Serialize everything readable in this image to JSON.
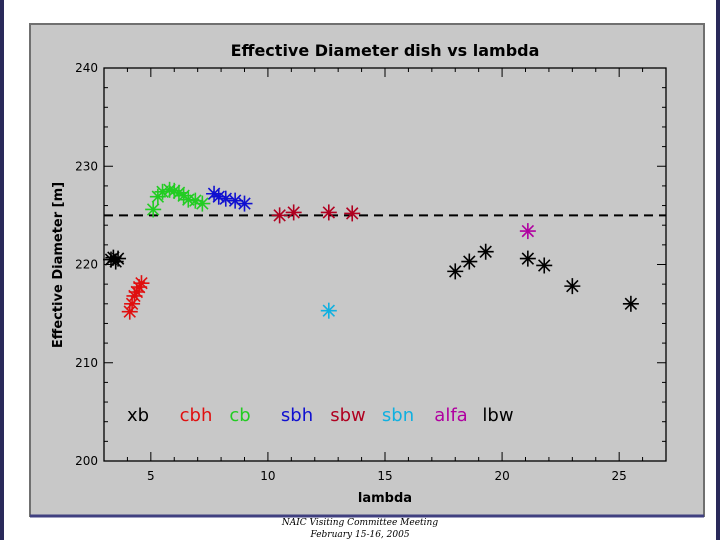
{
  "footer": {
    "line1": "NAIC Visiting Committee Meeting",
    "line2": "February 15-16, 2005"
  },
  "colors": {
    "background": "#c8c8c8",
    "xb": "#000000",
    "cbh": "#e01010",
    "cb": "#22cc22",
    "sbh": "#1010d0",
    "sbw": "#b00020",
    "sbn": "#10b0e0",
    "alfa": "#b000a0",
    "lbw": "#000000"
  },
  "chart_data": {
    "type": "scatter",
    "title": "Effective Diameter dish vs lambda",
    "xlabel": "lambda",
    "ylabel": "Effective Diameter [m]",
    "xlim": [
      3,
      27
    ],
    "ylim": [
      200,
      240
    ],
    "xticks": [
      5,
      10,
      15,
      20,
      25
    ],
    "yticks": [
      200,
      210,
      220,
      230,
      240
    ],
    "reference_line": {
      "y": 225,
      "style": "dashed"
    },
    "marker": "asterisk",
    "series": [
      {
        "name": "xb",
        "color_key": "xb",
        "points": [
          [
            3.3,
            220.5
          ],
          [
            3.4,
            220.7
          ],
          [
            3.5,
            220.3
          ],
          [
            3.6,
            220.6
          ]
        ]
      },
      {
        "name": "cbh",
        "color_key": "cbh",
        "points": [
          [
            4.1,
            215.2
          ],
          [
            4.2,
            216.0
          ],
          [
            4.3,
            216.8
          ],
          [
            4.4,
            217.2
          ],
          [
            4.5,
            217.7
          ],
          [
            4.6,
            218.1
          ]
        ]
      },
      {
        "name": "cb",
        "color_key": "cb",
        "points": [
          [
            5.1,
            225.6
          ],
          [
            5.3,
            226.9
          ],
          [
            5.5,
            227.4
          ],
          [
            5.8,
            227.6
          ],
          [
            6.0,
            227.5
          ],
          [
            6.2,
            227.3
          ],
          [
            6.4,
            227.0
          ],
          [
            6.6,
            226.6
          ],
          [
            6.9,
            226.5
          ],
          [
            7.2,
            226.2
          ]
        ]
      },
      {
        "name": "sbh",
        "color_key": "sbh",
        "points": [
          [
            7.7,
            227.2
          ],
          [
            7.9,
            226.9
          ],
          [
            8.2,
            226.7
          ],
          [
            8.6,
            226.5
          ],
          [
            9.0,
            226.2
          ]
        ]
      },
      {
        "name": "sbw",
        "color_key": "sbw",
        "points": [
          [
            10.5,
            225.0
          ],
          [
            11.1,
            225.3
          ],
          [
            12.6,
            225.3
          ],
          [
            13.6,
            225.2
          ]
        ]
      },
      {
        "name": "sbn",
        "color_key": "sbn",
        "points": [
          [
            12.6,
            215.3
          ]
        ]
      },
      {
        "name": "alfa",
        "color_key": "alfa",
        "points": [
          [
            21.1,
            223.4
          ]
        ]
      },
      {
        "name": "lbw",
        "color_key": "lbw",
        "points": [
          [
            18.0,
            219.3
          ],
          [
            18.6,
            220.3
          ],
          [
            19.3,
            221.3
          ],
          [
            21.1,
            220.6
          ],
          [
            21.8,
            219.9
          ],
          [
            23.0,
            217.8
          ],
          [
            25.5,
            216.0
          ]
        ]
      }
    ],
    "legend": [
      {
        "text": "xb",
        "color_key": "xb"
      },
      {
        "text": "cbh",
        "color_key": "cbh"
      },
      {
        "text": "cb",
        "color_key": "cb"
      },
      {
        "text": "sbh",
        "color_key": "sbh"
      },
      {
        "text": "sbw",
        "color_key": "sbw"
      },
      {
        "text": "sbn",
        "color_key": "sbn"
      },
      {
        "text": "alfa",
        "color_key": "alfa"
      },
      {
        "text": "lbw",
        "color_key": "lbw"
      }
    ],
    "legend_placement": "bottom inside plot, single row"
  }
}
